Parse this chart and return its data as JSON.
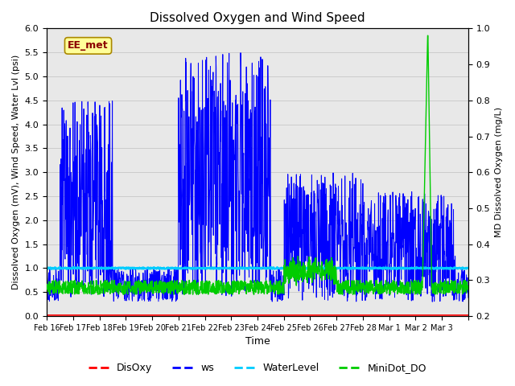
{
  "title": "Dissolved Oxygen and Wind Speed",
  "xlabel": "Time",
  "ylabel_left": "Dissolved Oxygen (mV), Wind Speed, Water Lvl (psi)",
  "ylabel_right": "MD Dissolved Oxygen (mg/L)",
  "ylim_left": [
    0.0,
    6.0
  ],
  "ylim_right": [
    0.2,
    1.0
  ],
  "annotation_text": "EE_met",
  "annotation_color": "#8B0000",
  "annotation_bg": "#FFFF99",
  "grid_color": "#cccccc",
  "bg_color": "#e8e8e8",
  "xtick_positions": [
    0,
    1,
    2,
    3,
    4,
    5,
    6,
    7,
    8,
    9,
    10,
    11,
    12,
    13,
    14,
    15,
    16
  ],
  "xtick_labels": [
    "Feb 16",
    "Feb 17",
    "Feb 18",
    "Feb 19",
    "Feb 20",
    "Feb 21",
    "Feb 22",
    "Feb 23",
    "Feb 24",
    "Feb 25",
    "Feb 26",
    "Feb 27",
    "Feb 28",
    "Mar 1",
    "Mar 2",
    "Mar 3",
    ""
  ],
  "legend_labels": [
    "DisOxy",
    "ws",
    "WaterLevel",
    "MiniDot_DO"
  ],
  "legend_colors": [
    "#ff0000",
    "#0000ff",
    "#00ccff",
    "#00cc00"
  ],
  "seed": 42
}
